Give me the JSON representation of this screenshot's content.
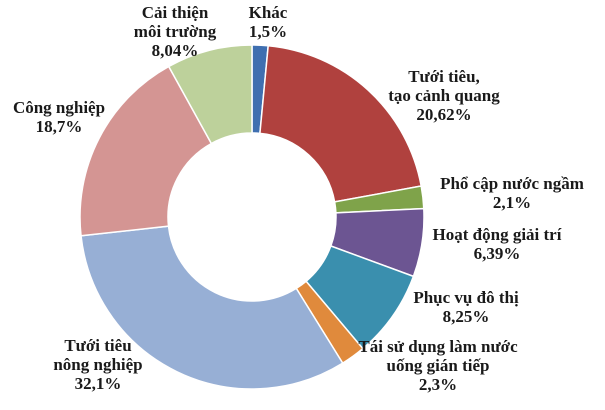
{
  "chart_data": {
    "type": "pie",
    "title": "",
    "donut": true,
    "slices": [
      {
        "name_lines": [
          "Khác"
        ],
        "value_label": "1,5%",
        "value": 1.5,
        "color": "#3f6fb0"
      },
      {
        "name_lines": [
          "Tưới tiêu,",
          "tạo cảnh quang"
        ],
        "value_label": "20,62%",
        "value": 20.62,
        "color": "#b0413e"
      },
      {
        "name_lines": [
          "Phổ cập nước ngầm"
        ],
        "value_label": "2,1%",
        "value": 2.1,
        "color": "#7fa34a"
      },
      {
        "name_lines": [
          "Hoạt động giải trí"
        ],
        "value_label": "6,39%",
        "value": 6.39,
        "color": "#6c5592"
      },
      {
        "name_lines": [
          "Phục vụ đô thị"
        ],
        "value_label": "8,25%",
        "value": 8.25,
        "color": "#3a8fae"
      },
      {
        "name_lines": [
          "Tái sử dụng làm nước",
          "uống gián tiếp"
        ],
        "value_label": "2,3%",
        "value": 2.3,
        "color": "#e08a3c"
      },
      {
        "name_lines": [
          "Tưới tiêu",
          "nông nghiệp"
        ],
        "value_label": "32,1%",
        "value": 32.1,
        "color": "#97afd5"
      },
      {
        "name_lines": [
          "Công nghiệp"
        ],
        "value_label": "18,7%",
        "value": 18.7,
        "color": "#d49593"
      },
      {
        "name_lines": [
          "Cải thiện",
          "môi trường"
        ],
        "value_label": "8,04%",
        "value": 8.04,
        "color": "#bdd19b"
      }
    ]
  }
}
